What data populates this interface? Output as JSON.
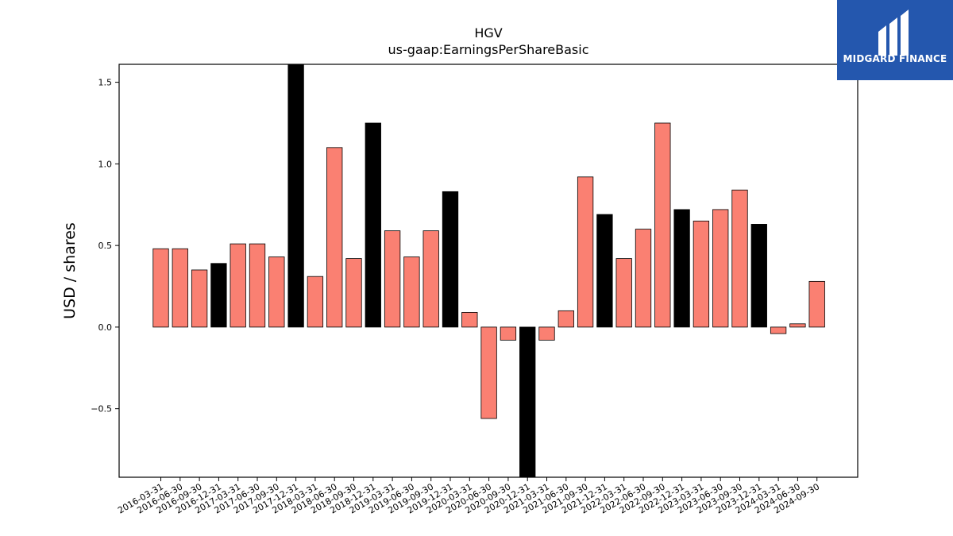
{
  "chart_data": {
    "type": "bar",
    "title": "HGV",
    "subtitle": "us-gaap:EarningsPerShareBasic",
    "ylabel": "USD / shares",
    "xlabel": "",
    "ylim": [
      -0.92,
      1.61
    ],
    "yticks": [
      -0.5,
      0.0,
      0.5,
      1.0,
      1.5
    ],
    "grid": false,
    "colors": {
      "quarter": "#fa8072",
      "annual": "#000000"
    },
    "categories": [
      "2016-03-31",
      "2016-06-30",
      "2016-09-30",
      "2016-12-31",
      "2017-03-31",
      "2017-06-30",
      "2017-09-30",
      "2017-12-31",
      "2018-03-31",
      "2018-06-30",
      "2018-09-30",
      "2018-12-31",
      "2019-03-31",
      "2019-06-30",
      "2019-09-30",
      "2019-12-31",
      "2020-03-31",
      "2020-06-30",
      "2020-09-30",
      "2020-12-31",
      "2021-03-31",
      "2021-06-30",
      "2021-09-30",
      "2021-12-31",
      "2022-03-31",
      "2022-06-30",
      "2022-09-30",
      "2022-12-31",
      "2023-03-31",
      "2023-06-30",
      "2023-09-30",
      "2023-12-31",
      "2024-03-31",
      "2024-06-30",
      "2024-09-30"
    ],
    "values": [
      0.48,
      0.48,
      0.35,
      0.39,
      0.51,
      0.51,
      0.43,
      1.61,
      0.31,
      1.1,
      0.42,
      1.25,
      0.59,
      0.43,
      0.59,
      0.83,
      0.09,
      -0.56,
      -0.08,
      -0.92,
      -0.08,
      0.1,
      0.92,
      0.69,
      0.42,
      0.6,
      1.25,
      0.72,
      0.65,
      0.72,
      0.84,
      0.63,
      -0.04,
      0.02,
      0.28
    ],
    "annual": [
      false,
      false,
      false,
      true,
      false,
      false,
      false,
      true,
      false,
      false,
      false,
      true,
      false,
      false,
      false,
      true,
      false,
      false,
      false,
      true,
      false,
      false,
      false,
      true,
      false,
      false,
      false,
      true,
      false,
      false,
      false,
      true,
      false,
      false,
      false
    ]
  },
  "logo": {
    "text": "MIDGARD FINANCE",
    "background": "#2457ae"
  }
}
